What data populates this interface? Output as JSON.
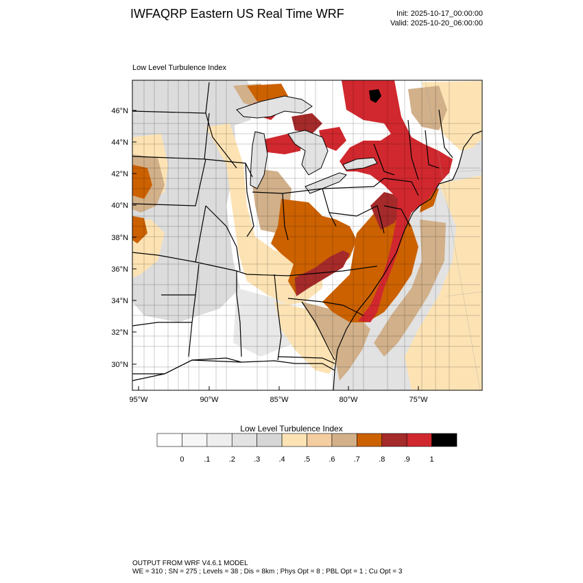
{
  "header": {
    "title": "IWFAQRP Eastern US Real Time WRF",
    "init": "Init: 2025-10-17_00:00:00",
    "valid": "Valid: 2025-10-20_06:00:00"
  },
  "map": {
    "field_title": "Low Level Turbulence Index",
    "lat_labels": [
      "46°N",
      "44°N",
      "42°N",
      "40°N",
      "38°N",
      "36°N",
      "34°N",
      "32°N",
      "30°N"
    ],
    "lon_labels": [
      "95°W",
      "90°W",
      "85°W",
      "80°W",
      "75°W"
    ],
    "colors": {
      "ocean": "#e2e2e2",
      "land_low": "#ffffff",
      "land_grey": "#dcdcdc",
      "cream": "#fde3b4",
      "tan": "#d1b08a",
      "orange": "#cc6100",
      "brown_red": "#a52a2a",
      "red": "#d0282e"
    }
  },
  "colorbar": {
    "title": "Low Level Turbulence Index",
    "colors": [
      "#ffffff",
      "#f6f6f6",
      "#eeeeee",
      "#e2e2e2",
      "#d6d6d6",
      "#fde3b4",
      "#f4cda0",
      "#d1b08a",
      "#cc6100",
      "#a52a2a",
      "#d0282e",
      "#000000"
    ],
    "labels": [
      "0",
      ".1",
      ".2",
      ".3",
      ".4",
      ".5",
      ".6",
      ".7",
      ".8",
      ".9",
      "1"
    ]
  },
  "footer": {
    "line1": "OUTPUT FROM WRF V4.6.1 MODEL",
    "line2": "WE = 310 ; SN = 275 ; Levels = 38 ; Dis = 8km ; Phys Opt = 8 ; PBL Opt = 1 ; Cu Opt = 3"
  }
}
